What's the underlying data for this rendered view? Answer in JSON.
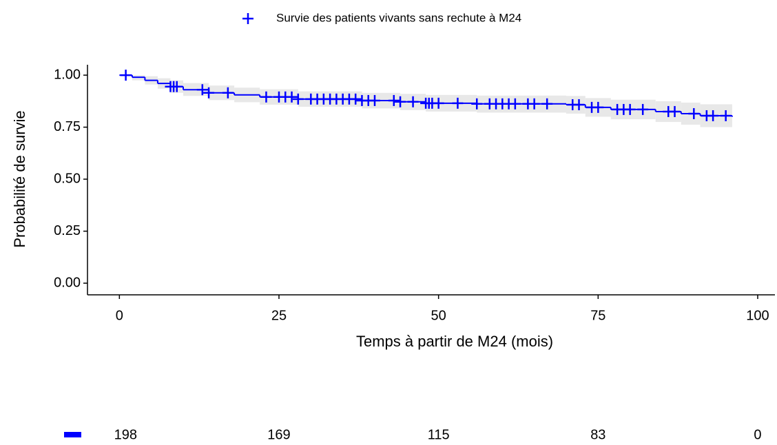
{
  "chart_data": {
    "type": "survival",
    "xlabel": "Temps à partir de M24 (mois)",
    "ylabel": "Probabilité de survie",
    "xlim": [
      -5,
      102.7
    ],
    "ylim": [
      -0.056,
      1.05
    ],
    "xticks": [
      0,
      25,
      50,
      75,
      100
    ],
    "yticks": [
      {
        "value": 0,
        "label": "0.00"
      },
      {
        "value": 0.25,
        "label": "0.25"
      },
      {
        "value": 0.5,
        "label": "0.50"
      },
      {
        "value": 0.75,
        "label": "0.75"
      },
      {
        "value": 1,
        "label": "1.00"
      }
    ],
    "series": [
      {
        "name": "Survie des patients vivants sans rechute à M24",
        "color": "#0000ff",
        "band_color": "#e8e8e8",
        "time": [
          0,
          2,
          4,
          6,
          8,
          10,
          14,
          18,
          22,
          28,
          38,
          44,
          48,
          56,
          70,
          73,
          77,
          84,
          88,
          91,
          96
        ],
        "survival": [
          1,
          0.99,
          0.975,
          0.96,
          0.945,
          0.93,
          0.915,
          0.905,
          0.895,
          0.885,
          0.878,
          0.872,
          0.865,
          0.862,
          0.858,
          0.845,
          0.835,
          0.825,
          0.815,
          0.805,
          0.8
        ],
        "lower": [
          1,
          0.975,
          0.955,
          0.935,
          0.915,
          0.9,
          0.88,
          0.87,
          0.858,
          0.848,
          0.84,
          0.832,
          0.825,
          0.82,
          0.815,
          0.8,
          0.788,
          0.775,
          0.762,
          0.75,
          0.742
        ],
        "upper": [
          1,
          1,
          0.995,
          0.985,
          0.975,
          0.962,
          0.95,
          0.94,
          0.932,
          0.922,
          0.915,
          0.91,
          0.905,
          0.902,
          0.9,
          0.89,
          0.882,
          0.875,
          0.868,
          0.86,
          0.858
        ],
        "censor_time": [
          1,
          8,
          8.5,
          9,
          13,
          14,
          17,
          23,
          25,
          26,
          27,
          28,
          30,
          31,
          32,
          33,
          34,
          35,
          36,
          37,
          38,
          39,
          40,
          43,
          44,
          46,
          48,
          48.5,
          49,
          50,
          53,
          56,
          58,
          59,
          60,
          61,
          62,
          64,
          65,
          67,
          71,
          72,
          74,
          75,
          78,
          79,
          80,
          82,
          86,
          87,
          90,
          92,
          93,
          95
        ],
        "censor_survival": [
          1,
          0.945,
          0.945,
          0.945,
          0.93,
          0.915,
          0.915,
          0.895,
          0.895,
          0.895,
          0.895,
          0.885,
          0.885,
          0.885,
          0.885,
          0.885,
          0.885,
          0.885,
          0.885,
          0.885,
          0.878,
          0.878,
          0.878,
          0.878,
          0.872,
          0.872,
          0.865,
          0.865,
          0.865,
          0.865,
          0.865,
          0.862,
          0.862,
          0.862,
          0.862,
          0.862,
          0.862,
          0.862,
          0.862,
          0.862,
          0.858,
          0.858,
          0.845,
          0.845,
          0.835,
          0.835,
          0.835,
          0.835,
          0.825,
          0.825,
          0.815,
          0.805,
          0.805,
          0.805
        ]
      }
    ],
    "risk_table": {
      "times": [
        0,
        25,
        50,
        75,
        100
      ],
      "values": [
        198,
        169,
        115,
        83,
        0
      ]
    }
  }
}
